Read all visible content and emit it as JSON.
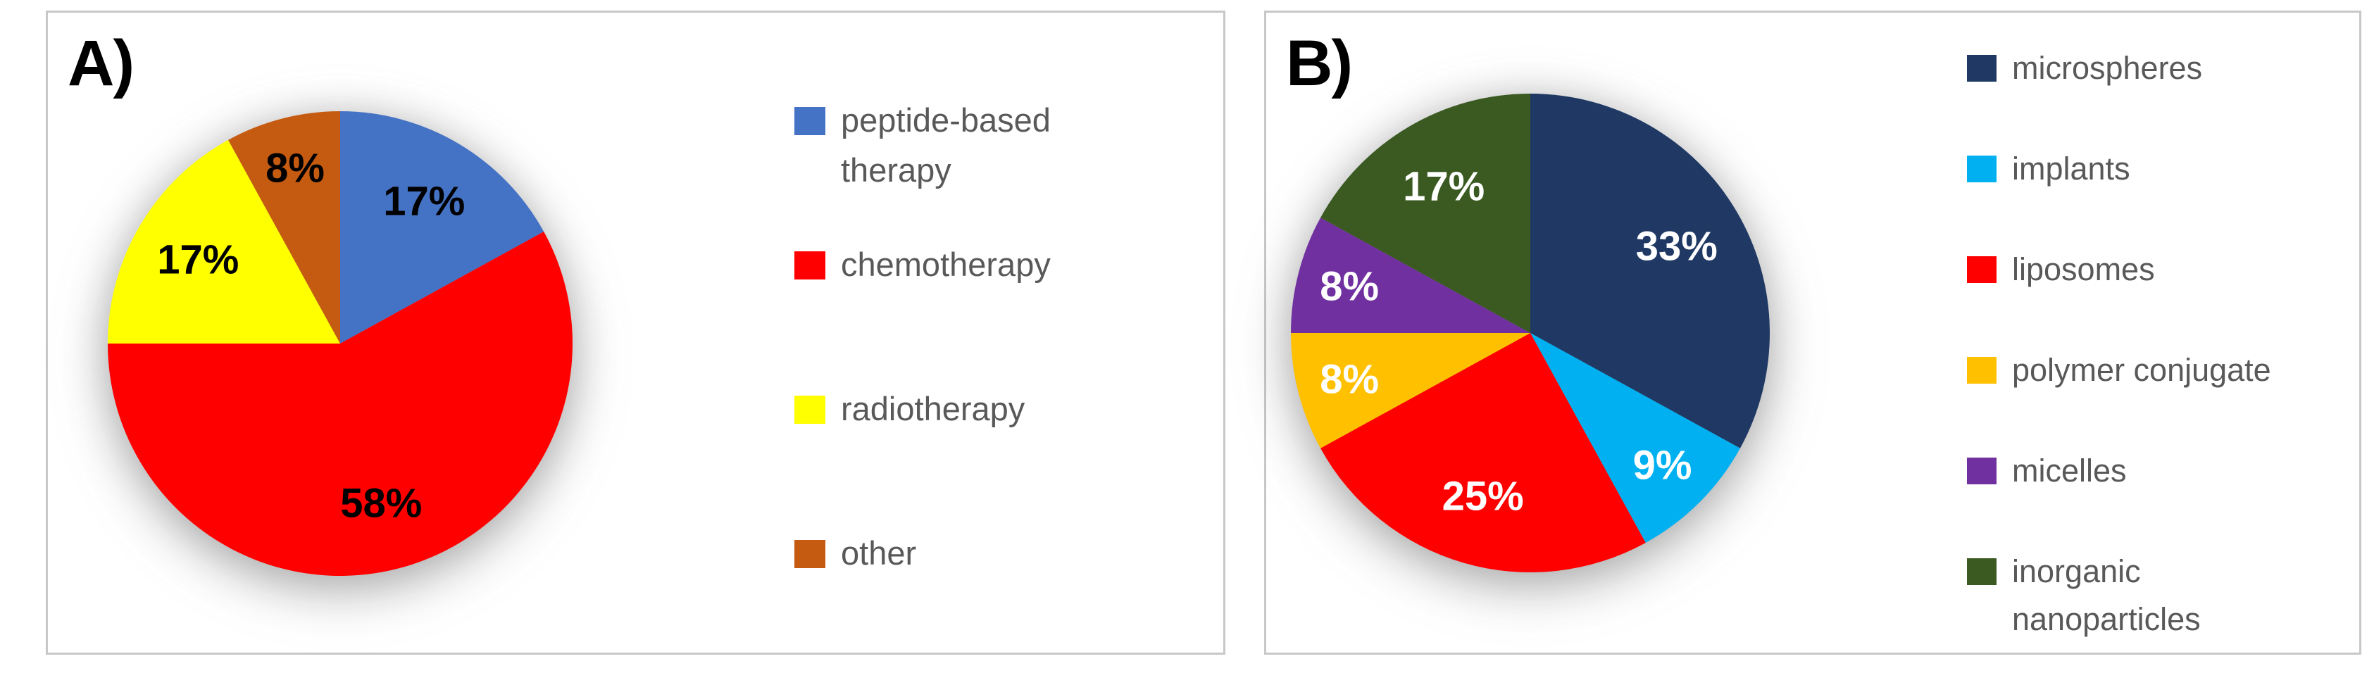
{
  "figure": {
    "background_color": "#ffffff",
    "panel_border_color": "#c8c8c8",
    "legend_text_color": "#595959"
  },
  "chart_data": [
    {
      "type": "pie",
      "panel_label": "A)",
      "categories": [
        "peptide-based therapy",
        "chemotherapy",
        "radiotherapy",
        "other"
      ],
      "values": [
        17,
        58,
        17,
        8
      ],
      "slice_labels": [
        "17%",
        "58%",
        "17%",
        "8%"
      ],
      "colors": [
        "#4472C4",
        "#FF0000",
        "#FFFF00",
        "#C55A11"
      ],
      "slice_label_color": "#000000",
      "legend_labels": [
        "peptide-based\ntherapy",
        "chemotherapy",
        "radiotherapy",
        "other"
      ],
      "legend_position": "right",
      "start_angle_deg": 0,
      "direction": "clockwise"
    },
    {
      "type": "pie",
      "panel_label": "B)",
      "categories": [
        "microspheres",
        "implants",
        "liposomes",
        "polymer conjugate",
        "micelles",
        "inorganic nanoparticles"
      ],
      "values": [
        33,
        9,
        25,
        8,
        8,
        17
      ],
      "slice_labels": [
        "33%",
        "9%",
        "25%",
        "8%",
        "8%",
        "17%"
      ],
      "colors": [
        "#1F3864",
        "#00B0F0",
        "#FF0000",
        "#FFC000",
        "#7030A0",
        "#3A5A22"
      ],
      "slice_label_color": "#FFFFFF",
      "legend_labels": [
        "microspheres",
        "implants",
        "liposomes",
        "polymer conjugate",
        "micelles",
        "inorganic\nnanoparticles"
      ],
      "legend_position": "right",
      "start_angle_deg": 0,
      "direction": "clockwise"
    }
  ]
}
